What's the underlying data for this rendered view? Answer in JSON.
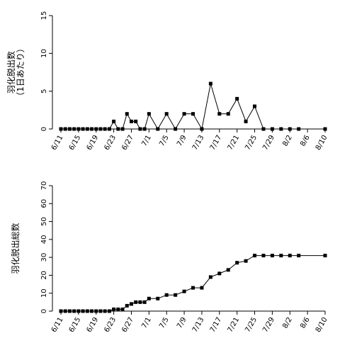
{
  "chart_data": [
    {
      "type": "line",
      "ylabel_lines": [
        "羽化脱出数",
        "（1日あたり）"
      ],
      "ylim": [
        0,
        15
      ],
      "yticks": [
        0,
        5,
        10,
        15
      ],
      "xticks": [
        "6/11",
        "6/15",
        "6/19",
        "6/23",
        "6/27",
        "7/1",
        "7/5",
        "7/9",
        "7/13",
        "7/17",
        "7/21",
        "7/25",
        "7/29",
        "8/2",
        "8/6",
        "8/10"
      ],
      "grid": false,
      "series": [
        {
          "x": [
            "6/11",
            "6/12",
            "6/13",
            "6/14",
            "6/15",
            "6/16",
            "6/17",
            "6/18",
            "6/19",
            "6/20",
            "6/21",
            "6/22",
            "6/23",
            "6/24",
            "6/25",
            "6/26",
            "6/27",
            "6/28",
            "6/29",
            "6/30",
            "7/1",
            "7/3",
            "7/5",
            "7/7",
            "7/9",
            "7/11",
            "7/13",
            "7/15",
            "7/17",
            "7/19",
            "7/21",
            "7/23",
            "7/25",
            "7/27",
            "7/29",
            "7/31",
            "8/2",
            "8/4",
            "8/10"
          ],
          "y": [
            0,
            0,
            0,
            0,
            0,
            0,
            0,
            0,
            0,
            0,
            0,
            0,
            1,
            0,
            0,
            2,
            1,
            1,
            0,
            0,
            2,
            0,
            2,
            0,
            2,
            2,
            0,
            6,
            2,
            2,
            4,
            1,
            3,
            0,
            0,
            0,
            0,
            0,
            0
          ]
        }
      ]
    },
    {
      "type": "line",
      "ylabel": "羽化脱出総数",
      "ylim": [
        0,
        70
      ],
      "yticks": [
        0,
        10,
        20,
        30,
        40,
        50,
        60,
        70
      ],
      "xticks": [
        "6/11",
        "6/15",
        "6/19",
        "6/23",
        "6/27",
        "7/1",
        "7/5",
        "7/9",
        "7/13",
        "7/17",
        "7/21",
        "7/25",
        "7/29",
        "8/2",
        "8/6",
        "8/10"
      ],
      "grid": false,
      "series": [
        {
          "x": [
            "6/11",
            "6/12",
            "6/13",
            "6/14",
            "6/15",
            "6/16",
            "6/17",
            "6/18",
            "6/19",
            "6/20",
            "6/21",
            "6/22",
            "6/23",
            "6/24",
            "6/25",
            "6/26",
            "6/27",
            "6/28",
            "6/29",
            "6/30",
            "7/1",
            "7/3",
            "7/5",
            "7/7",
            "7/9",
            "7/11",
            "7/13",
            "7/15",
            "7/17",
            "7/19",
            "7/21",
            "7/23",
            "7/25",
            "7/27",
            "7/29",
            "7/31",
            "8/2",
            "8/4",
            "8/10"
          ],
          "y": [
            0,
            0,
            0,
            0,
            0,
            0,
            0,
            0,
            0,
            0,
            0,
            0,
            1,
            1,
            1,
            3,
            4,
            5,
            5,
            5,
            7,
            7,
            9,
            9,
            11,
            13,
            13,
            19,
            21,
            23,
            27,
            28,
            31,
            31,
            31,
            31,
            31,
            31,
            31
          ]
        }
      ]
    }
  ]
}
